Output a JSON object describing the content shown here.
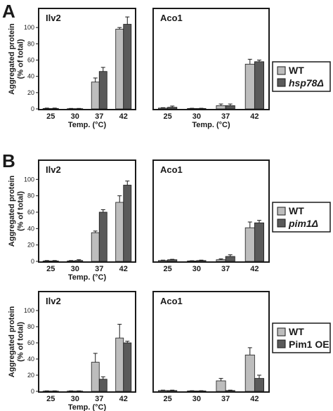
{
  "labels": {
    "A": "A",
    "B": "B"
  },
  "legends": {
    "A": {
      "wt": "WT",
      "mut": "hsp78Δ"
    },
    "B1": {
      "wt": "WT",
      "mut": "pim1Δ"
    },
    "B2": {
      "wt": "WT",
      "mut": "Pim1 OE"
    }
  },
  "colors": {
    "wt": "#bdbdbd",
    "mut": "#5a5a5a",
    "frame": "#1a1a1a"
  },
  "chart_data": [
    {
      "id": "A-Ilv2",
      "type": "bar",
      "title": "Ilv2",
      "categories": [
        "25",
        "30",
        "37",
        "42"
      ],
      "xlabel": "Temp. (°C)",
      "ylabel": "Aggregated protein (% of total)",
      "ylim": [
        0,
        120
      ],
      "yticks": [
        0,
        20,
        40,
        60,
        80,
        100
      ],
      "series": [
        {
          "name": "WT",
          "values": [
            0.5,
            0.3,
            33,
            98
          ],
          "errors": [
            0.5,
            0.3,
            5,
            2
          ]
        },
        {
          "name": "hsp78Δ",
          "values": [
            0.5,
            0.3,
            46,
            104
          ],
          "errors": [
            0.5,
            0.3,
            5,
            9
          ]
        }
      ]
    },
    {
      "id": "A-Aco1",
      "type": "bar",
      "title": "Aco1",
      "categories": [
        "25",
        "30",
        "37",
        "42"
      ],
      "xlabel": "Temp. (°C)",
      "ylabel": "",
      "ylim": [
        0,
        120
      ],
      "yticks": [],
      "series": [
        {
          "name": "WT",
          "values": [
            1,
            0.5,
            4,
            55
          ],
          "errors": [
            0.5,
            0.3,
            2,
            6
          ]
        },
        {
          "name": "hsp78Δ",
          "values": [
            2,
            0.5,
            4,
            58
          ],
          "errors": [
            1.5,
            0.3,
            2,
            2
          ]
        }
      ]
    },
    {
      "id": "B1-Ilv2",
      "type": "bar",
      "title": "Ilv2",
      "categories": [
        "25",
        "30",
        "37",
        "42"
      ],
      "xlabel": "Temp. (°C)",
      "ylabel": "Aggregated protein (% of total)",
      "ylim": [
        0,
        120
      ],
      "yticks": [
        0,
        20,
        40,
        60,
        80,
        100
      ],
      "series": [
        {
          "name": "WT",
          "values": [
            0.5,
            0.5,
            35,
            72
          ],
          "errors": [
            0.5,
            0.5,
            2,
            8
          ]
        },
        {
          "name": "pim1Δ",
          "values": [
            0.5,
            1,
            60,
            93
          ],
          "errors": [
            0.5,
            1,
            3,
            5
          ]
        }
      ]
    },
    {
      "id": "B1-Aco1",
      "type": "bar",
      "title": "Aco1",
      "categories": [
        "25",
        "30",
        "37",
        "42"
      ],
      "xlabel": "",
      "ylabel": "",
      "ylim": [
        0,
        120
      ],
      "yticks": [],
      "series": [
        {
          "name": "WT",
          "values": [
            1,
            0.5,
            2,
            41
          ],
          "errors": [
            0.5,
            0.3,
            1,
            7
          ]
        },
        {
          "name": "pim1Δ",
          "values": [
            2,
            1,
            6,
            47
          ],
          "errors": [
            0.5,
            0.5,
            2,
            3
          ]
        }
      ]
    },
    {
      "id": "B2-Ilv2",
      "type": "bar",
      "title": "Ilv2",
      "categories": [
        "25",
        "30",
        "37",
        "42"
      ],
      "xlabel": "Temp. (°C)",
      "ylabel": "Aggregated protein (% of total)",
      "ylim": [
        0,
        120
      ],
      "yticks": [
        0,
        20,
        40,
        60,
        80,
        100
      ],
      "series": [
        {
          "name": "WT",
          "values": [
            0.3,
            0.3,
            36,
            66
          ],
          "errors": [
            0.3,
            0.3,
            11,
            17
          ]
        },
        {
          "name": "Pim1 OE",
          "values": [
            0.3,
            0.3,
            15,
            60
          ],
          "errors": [
            0.3,
            0.3,
            3,
            2
          ]
        }
      ]
    },
    {
      "id": "B2-Aco1",
      "type": "bar",
      "title": "Aco1",
      "categories": [
        "25",
        "30",
        "37",
        "42"
      ],
      "xlabel": "",
      "ylabel": "",
      "ylim": [
        0,
        120
      ],
      "yticks": [],
      "series": [
        {
          "name": "WT",
          "values": [
            1,
            0.5,
            13,
            45
          ],
          "errors": [
            0.5,
            0.3,
            3,
            9
          ]
        },
        {
          "name": "Pim1 OE",
          "values": [
            1,
            0.5,
            1,
            16
          ],
          "errors": [
            0.5,
            0.3,
            0.5,
            4
          ]
        }
      ]
    }
  ]
}
